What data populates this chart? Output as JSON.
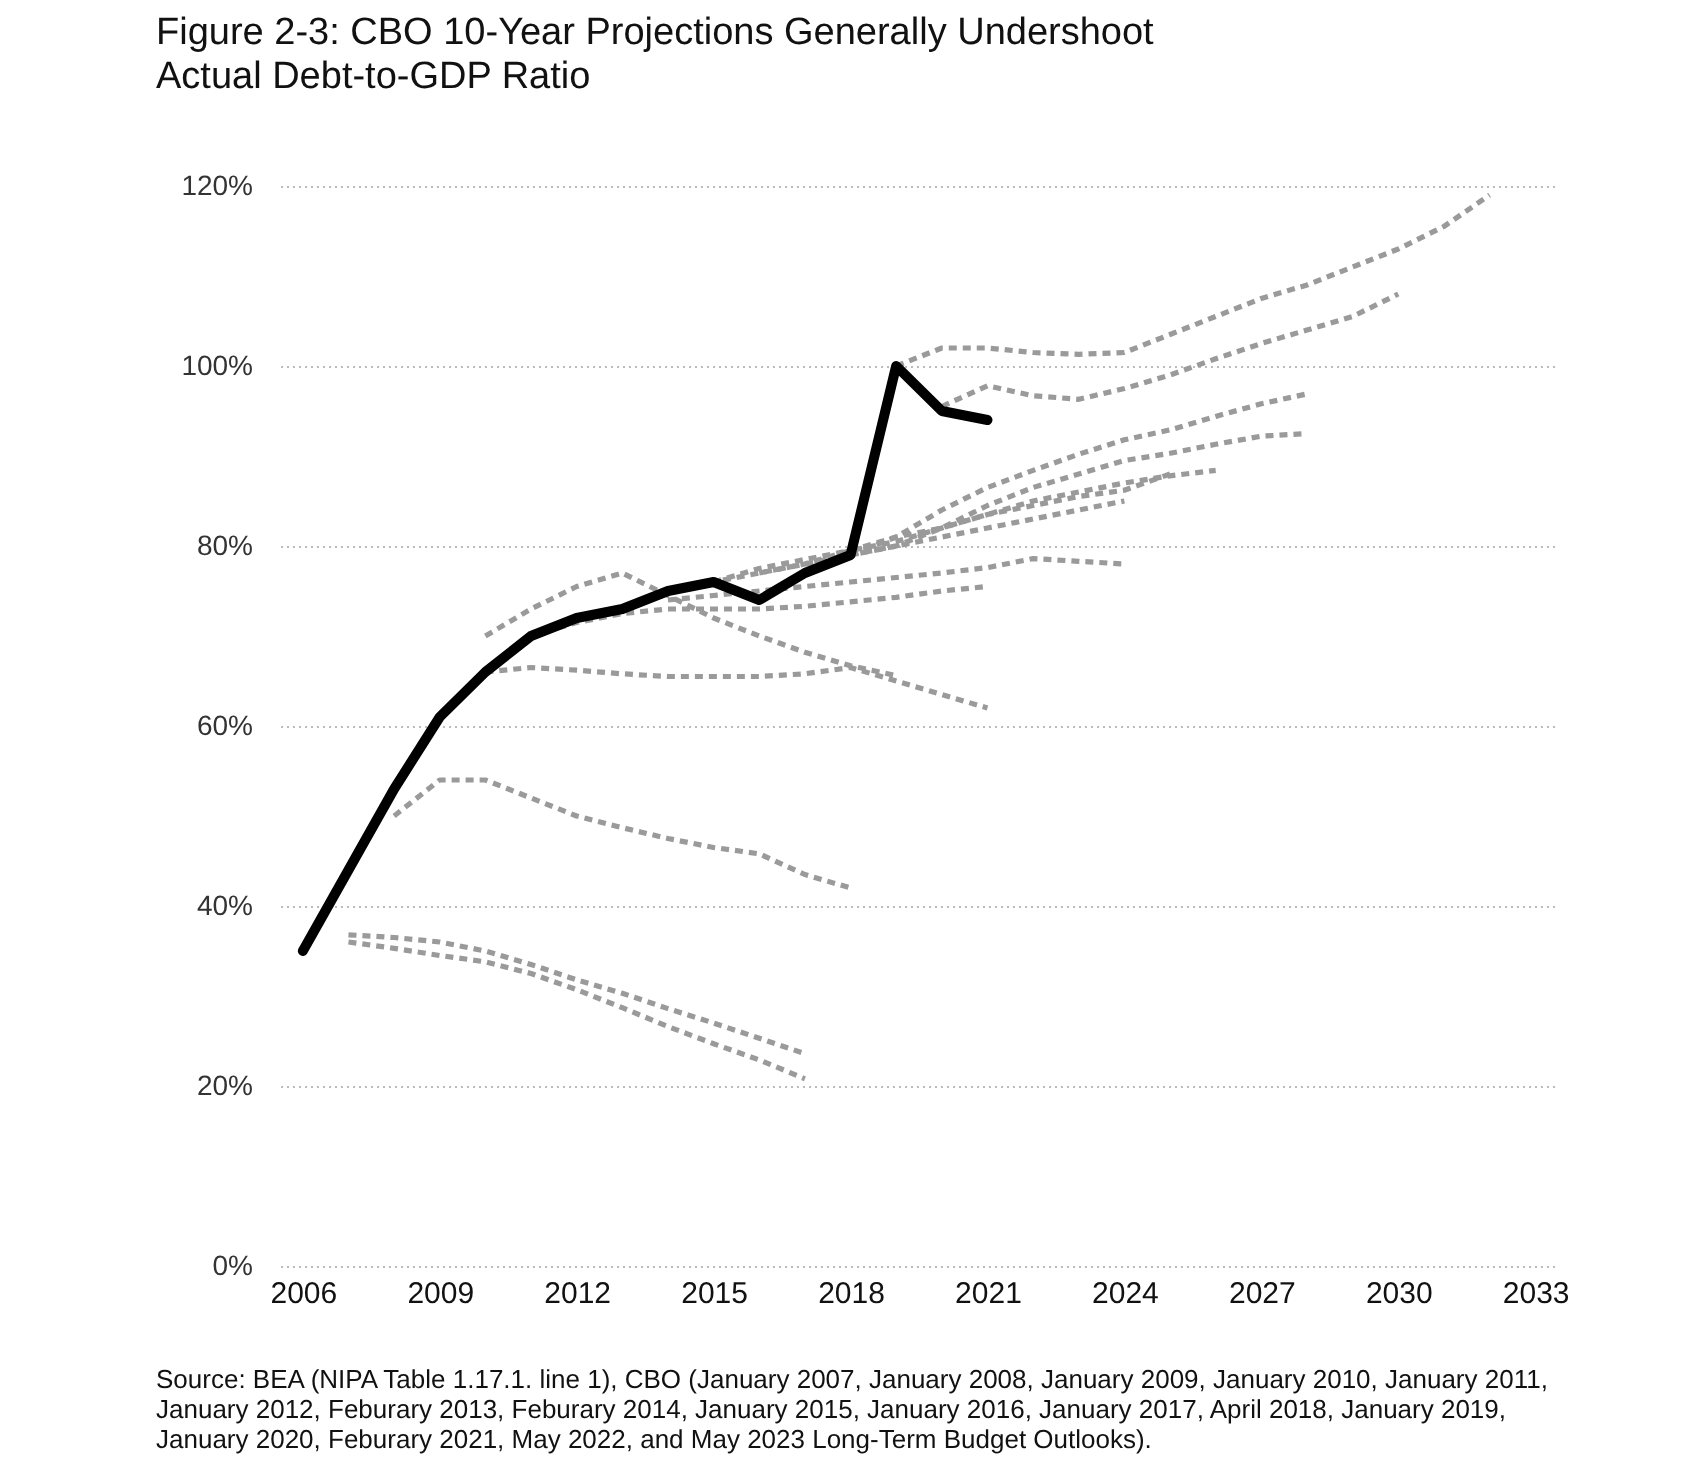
{
  "chart_data": {
    "type": "line",
    "title": "Figure 2-3: CBO 10-Year Projections Generally Undershoot Actual Debt-to-GDP Ratio",
    "annotations": [
      "Source: BEA (NIPA Table 1.17.1. line 1), CBO (January 2007, January 2008, January 2009, January 2010, January 2011, January 2012, Feburary 2013, Feburary 2014, January 2015, January 2016, January 2017, April 2018, January 2019, January 2020, Feburary 2021, May 2022, and May 2023 Long-Term Budget Outlooks)."
    ],
    "xlim": [
      2005.5,
      2033.5
    ],
    "xticks": [
      2006,
      2009,
      2012,
      2015,
      2018,
      2021,
      2024,
      2027,
      2030,
      2033
    ],
    "ylim": [
      0,
      120
    ],
    "yticks": [
      {
        "value": 0,
        "label": "0%"
      },
      {
        "value": 20,
        "label": "20%"
      },
      {
        "value": 40,
        "label": "40%"
      },
      {
        "value": 60,
        "label": "60%"
      },
      {
        "value": 80,
        "label": "80%"
      },
      {
        "value": 100,
        "label": "100%"
      },
      {
        "value": 120,
        "label": "120%"
      }
    ],
    "grid": "y",
    "line_style": "dashed",
    "marker": "none",
    "series": [
      {
        "color": "#9a9a9a",
        "x": [
          2007,
          2008,
          2009,
          2010,
          2011,
          2012,
          2013,
          2014,
          2015,
          2016,
          2017
        ],
        "values": [
          36.8,
          36.5,
          36,
          35,
          33.5,
          31.8,
          30.3,
          28.6,
          27,
          25.3,
          23.6
        ]
      },
      {
        "color": "#9a9a9a",
        "x": [
          2007,
          2008,
          2009,
          2010,
          2011,
          2012,
          2013,
          2014,
          2015,
          2016,
          2017
        ],
        "values": [
          36,
          35.3,
          34.5,
          33.8,
          32.5,
          30.7,
          28.7,
          26.6,
          24.7,
          22.9,
          20.8
        ]
      },
      {
        "color": "#9a9a9a",
        "x": [
          2008,
          2009,
          2010,
          2011,
          2012,
          2013,
          2014,
          2015,
          2016,
          2017,
          2018
        ],
        "values": [
          50,
          54,
          54,
          52,
          50,
          48.7,
          47.5,
          46.5,
          45.8,
          43.5,
          42
        ]
      },
      {
        "color": "#9a9a9a",
        "x": [
          2010,
          2011,
          2012,
          2013,
          2014,
          2015,
          2016,
          2017,
          2018,
          2019,
          2020,
          2021
        ],
        "values": [
          66,
          66.5,
          66.2,
          65.8,
          65.5,
          65.5,
          65.5,
          65.8,
          66.5,
          65,
          63.5,
          62
        ]
      },
      {
        "color": "#9a9a9a",
        "x": [
          2010,
          2011,
          2012,
          2013,
          2014,
          2015,
          2016,
          2017,
          2018,
          2019
        ],
        "values": [
          70,
          73,
          75.5,
          77,
          74.5,
          72,
          70,
          68.2,
          66.7,
          65.6
        ]
      },
      {
        "color": "#9a9a9a",
        "x": [
          2011,
          2012,
          2013,
          2014,
          2015,
          2016,
          2017,
          2018,
          2019,
          2020,
          2021
        ],
        "values": [
          70,
          71.5,
          72.5,
          73,
          73,
          73,
          73.3,
          73.8,
          74.3,
          75,
          75.5
        ]
      },
      {
        "color": "#9a9a9a",
        "x": [
          2014,
          2015,
          2016,
          2017,
          2018,
          2019,
          2020,
          2021,
          2022,
          2023,
          2024
        ],
        "values": [
          74,
          74.5,
          75,
          75.5,
          76,
          76.5,
          77,
          77.6,
          78.6,
          78.3,
          78
        ]
      },
      {
        "color": "#9a9a9a",
        "x": [
          2014,
          2015,
          2016,
          2017,
          2018,
          2019,
          2020,
          2021,
          2022,
          2023,
          2024
        ],
        "values": [
          75,
          76,
          77,
          78,
          79,
          80,
          81,
          82,
          83,
          84,
          85
        ]
      },
      {
        "color": "#9a9a9a",
        "x": [
          2015,
          2016,
          2017,
          2018,
          2019,
          2020,
          2021,
          2022,
          2023,
          2024,
          2025
        ],
        "values": [
          76,
          77.5,
          78.5,
          79.5,
          81,
          82,
          83.5,
          84.5,
          85.5,
          86.2,
          88
        ]
      },
      {
        "color": "#9a9a9a",
        "x": [
          2016,
          2017,
          2018,
          2019,
          2020,
          2021,
          2022,
          2023,
          2024,
          2025,
          2026
        ],
        "values": [
          77,
          78,
          79.5,
          80.5,
          82,
          83.5,
          85,
          86,
          87,
          87.8,
          88.4
        ]
      },
      {
        "color": "#9a9a9a",
        "x": [
          2018,
          2019,
          2020,
          2021,
          2022,
          2023,
          2024,
          2025,
          2026,
          2027,
          2028
        ],
        "values": [
          79,
          80,
          82,
          84.5,
          86.5,
          88,
          89.5,
          90.3,
          91.3,
          92.2,
          92.5
        ]
      },
      {
        "color": "#9a9a9a",
        "x": [
          2018,
          2019,
          2020,
          2021,
          2022,
          2023,
          2024,
          2025,
          2026,
          2027,
          2028
        ],
        "values": [
          79,
          81,
          84,
          86.5,
          88.4,
          90.2,
          91.8,
          92.9,
          94.4,
          95.8,
          96.9
        ]
      },
      {
        "color": "#9a9a9a",
        "x": [
          2020,
          2021,
          2022,
          2023,
          2024,
          2025,
          2026,
          2027,
          2028,
          2029,
          2030
        ],
        "values": [
          95.5,
          97.8,
          96.7,
          96.3,
          97.5,
          99,
          100.8,
          102.5,
          104,
          105.5,
          108
        ]
      },
      {
        "color": "#9a9a9a",
        "x": [
          2019,
          2020,
          2021,
          2022,
          2023,
          2024,
          2025,
          2026,
          2027,
          2028,
          2029,
          2030,
          2031,
          2032
        ],
        "values": [
          100,
          102,
          102,
          101.5,
          101.3,
          101.5,
          103.5,
          105.5,
          107.5,
          109,
          111,
          113,
          115.5,
          119
        ]
      },
      {
        "color": "#000000",
        "line_style": "solid",
        "x": [
          2006,
          2007,
          2008,
          2009,
          2010,
          2011,
          2012,
          2013,
          2014,
          2015,
          2016,
          2017,
          2018,
          2019,
          2020,
          2021
        ],
        "values": [
          35,
          44,
          53,
          61,
          66,
          70,
          72,
          73,
          75,
          76,
          74,
          77,
          79,
          100,
          95,
          94
        ]
      }
    ]
  }
}
